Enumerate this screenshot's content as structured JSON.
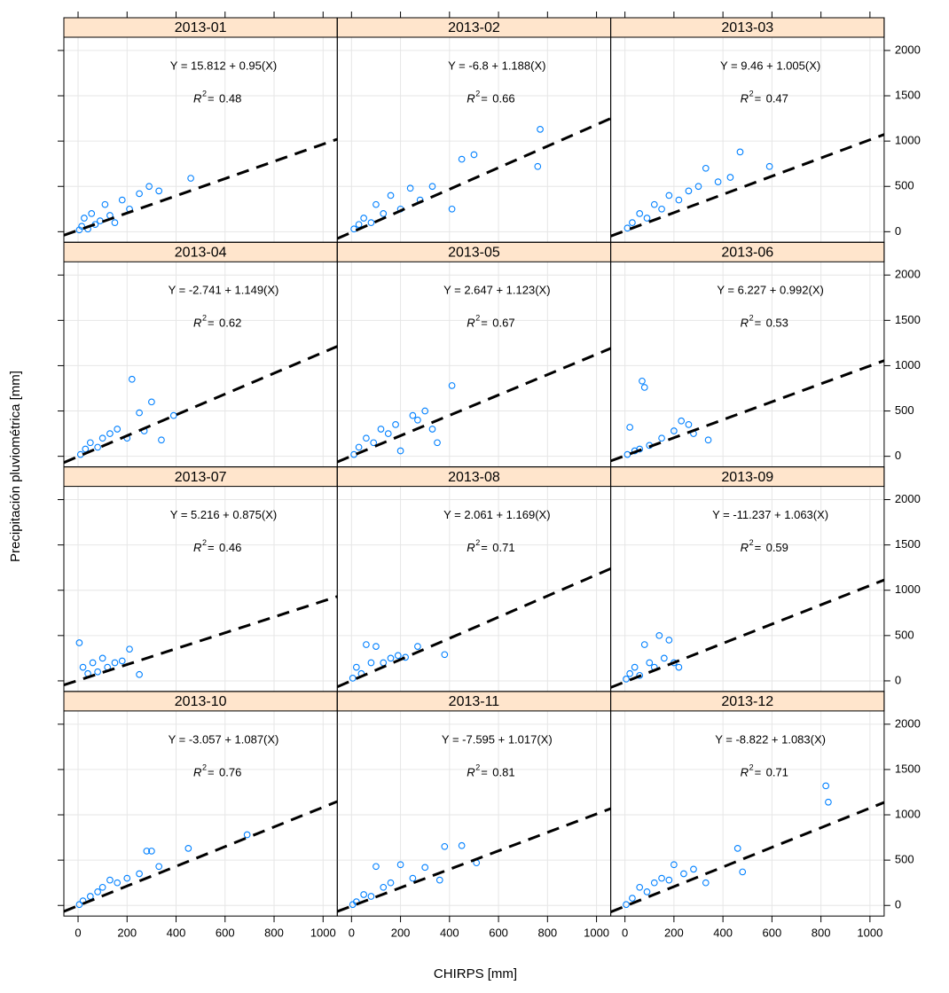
{
  "chart_data": {
    "type": "scatter",
    "xlabel": "CHIRPS [mm]",
    "ylabel": "Precipitación pluviométrica [mm]",
    "xlim": [
      -58,
      1058
    ],
    "ylim": [
      -117,
      2146
    ],
    "xticks": [
      0,
      200,
      400,
      600,
      800,
      1000
    ],
    "yticks": [
      0,
      500,
      1000,
      1500,
      2000
    ],
    "grid": true,
    "color": "#0080ff",
    "line_color": "#000000",
    "strip_color": "#ffe5cc",
    "r2_symbol": "R",
    "r2_power": "2",
    "r2_equals": "=",
    "panels": [
      {
        "title": "2013-01",
        "equation": "Y = 15.812 + 0.95(X)",
        "intercept": 15.812,
        "slope": 0.95,
        "r2": 0.48,
        "x": [
          5,
          15,
          25,
          40,
          55,
          70,
          90,
          110,
          130,
          150,
          180,
          210,
          250,
          290,
          330,
          460
        ],
        "y": [
          20,
          60,
          150,
          30,
          200,
          80,
          120,
          300,
          180,
          100,
          350,
          250,
          420,
          500,
          450,
          590
        ]
      },
      {
        "title": "2013-02",
        "equation": "Y = -6.8 + 1.188(X)",
        "intercept": -6.8,
        "slope": 1.188,
        "r2": 0.66,
        "x": [
          10,
          30,
          50,
          80,
          100,
          130,
          160,
          200,
          240,
          280,
          330,
          410,
          450,
          500,
          760,
          770
        ],
        "y": [
          30,
          80,
          150,
          100,
          300,
          200,
          400,
          250,
          480,
          350,
          500,
          250,
          800,
          850,
          720,
          1130
        ]
      },
      {
        "title": "2013-03",
        "equation": "Y = 9.46 + 1.005(X)",
        "intercept": 9.46,
        "slope": 1.005,
        "r2": 0.47,
        "x": [
          10,
          30,
          60,
          90,
          120,
          150,
          180,
          220,
          260,
          300,
          330,
          380,
          430,
          470,
          590
        ],
        "y": [
          40,
          100,
          200,
          150,
          300,
          250,
          400,
          350,
          450,
          500,
          700,
          550,
          600,
          880,
          720
        ]
      },
      {
        "title": "2013-04",
        "equation": "Y = -2.741 + 1.149(X)",
        "intercept": -2.741,
        "slope": 1.149,
        "r2": 0.62,
        "x": [
          10,
          30,
          50,
          80,
          100,
          130,
          160,
          200,
          220,
          250,
          270,
          300,
          340,
          390
        ],
        "y": [
          20,
          80,
          150,
          100,
          200,
          250,
          300,
          200,
          850,
          480,
          280,
          600,
          180,
          450
        ]
      },
      {
        "title": "2013-05",
        "equation": "Y = 2.647 + 1.123(X)",
        "intercept": 2.647,
        "slope": 1.123,
        "r2": 0.67,
        "x": [
          10,
          30,
          60,
          90,
          120,
          150,
          180,
          200,
          250,
          270,
          300,
          330,
          350,
          410
        ],
        "y": [
          20,
          100,
          200,
          150,
          300,
          250,
          350,
          60,
          450,
          400,
          500,
          300,
          150,
          780
        ]
      },
      {
        "title": "2013-06",
        "equation": "Y = 6.227 + 0.992(X)",
        "intercept": 6.227,
        "slope": 0.992,
        "r2": 0.53,
        "x": [
          10,
          20,
          40,
          60,
          70,
          80,
          100,
          150,
          200,
          230,
          260,
          280,
          340
        ],
        "y": [
          20,
          320,
          60,
          80,
          830,
          760,
          120,
          200,
          280,
          390,
          350,
          250,
          180
        ]
      },
      {
        "title": "2013-07",
        "equation": "Y = 5.216 + 0.875(X)",
        "intercept": 5.216,
        "slope": 0.875,
        "r2": 0.46,
        "x": [
          5,
          20,
          40,
          60,
          80,
          100,
          120,
          150,
          180,
          210,
          250
        ],
        "y": [
          420,
          150,
          80,
          200,
          100,
          250,
          150,
          200,
          220,
          350,
          70
        ]
      },
      {
        "title": "2013-08",
        "equation": "Y = 2.061 + 1.169(X)",
        "intercept": 2.061,
        "slope": 1.169,
        "r2": 0.71,
        "x": [
          5,
          20,
          40,
          60,
          80,
          100,
          130,
          160,
          190,
          220,
          270,
          380
        ],
        "y": [
          30,
          150,
          80,
          400,
          200,
          380,
          200,
          250,
          280,
          260,
          380,
          290
        ]
      },
      {
        "title": "2013-09",
        "equation": "Y = -11.237 + 1.063(X)",
        "intercept": -11.237,
        "slope": 1.063,
        "r2": 0.59,
        "x": [
          5,
          20,
          40,
          60,
          80,
          100,
          120,
          140,
          160,
          180,
          200,
          220
        ],
        "y": [
          20,
          80,
          150,
          60,
          400,
          200,
          150,
          500,
          250,
          450,
          200,
          150
        ]
      },
      {
        "title": "2013-10",
        "equation": "Y = -3.057 + 1.087(X)",
        "intercept": -3.057,
        "slope": 1.087,
        "r2": 0.76,
        "x": [
          5,
          20,
          50,
          80,
          100,
          130,
          160,
          200,
          250,
          280,
          300,
          330,
          450,
          690
        ],
        "y": [
          10,
          50,
          100,
          150,
          200,
          280,
          250,
          300,
          350,
          600,
          600,
          430,
          630,
          780
        ]
      },
      {
        "title": "2013-11",
        "equation": "Y = -7.595 + 1.017(X)",
        "intercept": -7.595,
        "slope": 1.017,
        "r2": 0.81,
        "x": [
          5,
          20,
          50,
          80,
          100,
          130,
          160,
          200,
          250,
          300,
          360,
          380,
          450,
          510
        ],
        "y": [
          10,
          40,
          120,
          100,
          430,
          200,
          250,
          450,
          300,
          420,
          280,
          650,
          660,
          470
        ]
      },
      {
        "title": "2013-12",
        "equation": "Y = -8.822 + 1.083(X)",
        "intercept": -8.822,
        "slope": 1.083,
        "r2": 0.71,
        "x": [
          5,
          30,
          60,
          90,
          120,
          150,
          180,
          200,
          240,
          280,
          330,
          460,
          480,
          820,
          830
        ],
        "y": [
          10,
          80,
          200,
          150,
          250,
          300,
          280,
          450,
          350,
          400,
          250,
          630,
          370,
          1320,
          1140
        ]
      }
    ]
  }
}
